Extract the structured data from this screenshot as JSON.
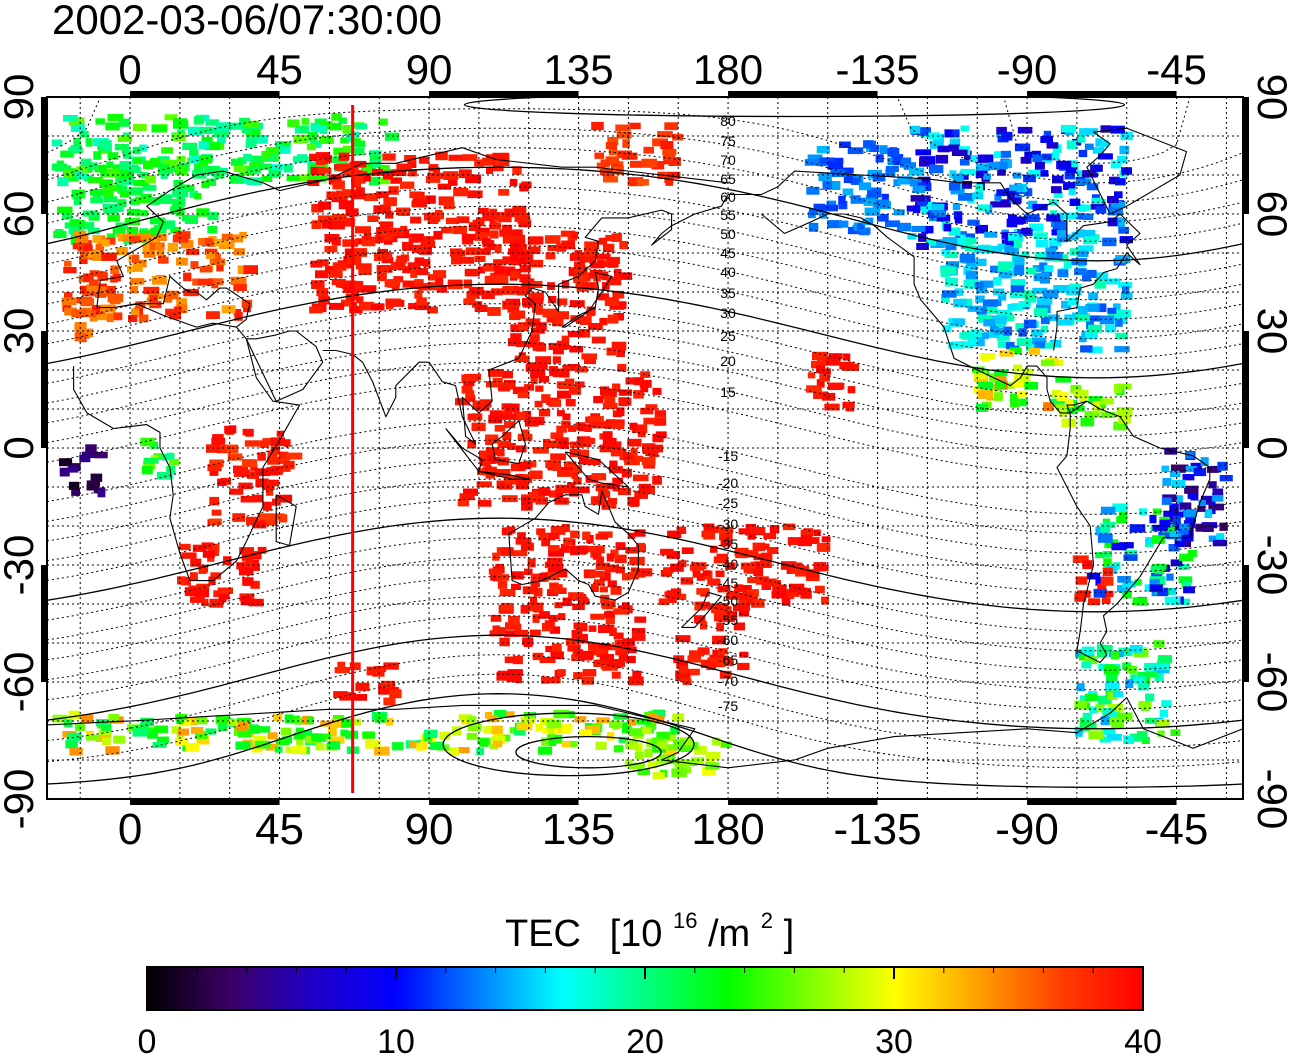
{
  "title": "2002-03-06/07:30:00",
  "map": {
    "lon_min": -25,
    "lon_max": 335,
    "lat_min": -90,
    "lat_max": 90,
    "top_lon_ticks": [
      "0",
      "45",
      "90",
      "135",
      "180",
      "-135",
      "-90",
      "-45"
    ],
    "bottom_lon_ticks": [
      "0",
      "45",
      "90",
      "135",
      "180",
      "-135",
      "-90",
      "-45"
    ],
    "left_lat_ticks": [
      "90",
      "60",
      "30",
      "0",
      "-30",
      "-60",
      "-90"
    ],
    "right_lat_ticks": [
      "90",
      "60",
      "30",
      "0",
      "-30",
      "-60",
      "-90"
    ],
    "meridian_line_lon": 67,
    "meridian_line_color": "#ff0000",
    "contour_labels_north": [
      "80",
      "75",
      "70",
      "65",
      "60",
      "55",
      "50",
      "45",
      "40",
      "35",
      "30",
      "25",
      "20",
      "15"
    ],
    "contour_labels_south": [
      "-15",
      "-20",
      "-25",
      "-30",
      "-35",
      "-40",
      "-45",
      "-50",
      "-55",
      "-60",
      "-65",
      "-70",
      "-75"
    ],
    "contour_label_lon": 180
  },
  "colorbar": {
    "title": "TEC",
    "unit_prefix": "[10",
    "unit_exp": "16",
    "unit_mid": "/m",
    "unit_exp2": "2",
    "unit_suffix": "]",
    "min": 0,
    "max": 40,
    "tick_labels": [
      "0",
      "10",
      "20",
      "30",
      "40"
    ],
    "colors": [
      "#000000",
      "#3c0064",
      "#2000c8",
      "#0000ff",
      "#0080ff",
      "#00ffff",
      "#00ff80",
      "#00ff00",
      "#80ff00",
      "#ffff00",
      "#ffa000",
      "#ff4000",
      "#ff0000"
    ]
  },
  "tec_regions": [
    {
      "lon": [
        -22,
        25
      ],
      "lat": [
        53,
        72
      ],
      "tec": [
        20,
        24
      ]
    },
    {
      "lon": [
        -20,
        37
      ],
      "lat": [
        33,
        55
      ],
      "tec": [
        33,
        39
      ]
    },
    {
      "lon": [
        -22,
        -12
      ],
      "lat": [
        28,
        35
      ],
      "tec": [
        34,
        37
      ]
    },
    {
      "lon": [
        140,
        165
      ],
      "lat": [
        68,
        83
      ],
      "tec": [
        36,
        39
      ]
    },
    {
      "lon": [
        -22,
        80
      ],
      "lat": [
        68,
        85
      ],
      "tec": [
        18,
        26
      ]
    },
    {
      "lon": [
        55,
        120
      ],
      "lat": [
        35,
        75
      ],
      "tec": [
        38,
        40
      ]
    },
    {
      "lon": [
        115,
        150
      ],
      "lat": [
        20,
        55
      ],
      "tec": [
        38,
        40
      ]
    },
    {
      "lon": [
        100,
        160
      ],
      "lat": [
        -15,
        20
      ],
      "tec": [
        38,
        40
      ]
    },
    {
      "lon": [
        110,
        155
      ],
      "lat": [
        -60,
        -20
      ],
      "tec": [
        38,
        40
      ]
    },
    {
      "lon": [
        160,
        210
      ],
      "lat": [
        -40,
        -20
      ],
      "tec": [
        38,
        40
      ]
    },
    {
      "lon": [
        165,
        185
      ],
      "lat": [
        -60,
        -40
      ],
      "tec": [
        38,
        40
      ]
    },
    {
      "lon": [
        15,
        40
      ],
      "lat": [
        -40,
        -25
      ],
      "tec": [
        38,
        40
      ]
    },
    {
      "lon": [
        25,
        50
      ],
      "lat": [
        -20,
        5
      ],
      "tec": [
        37,
        40
      ]
    },
    {
      "lon": [
        205,
        218
      ],
      "lat": [
        10,
        25
      ],
      "tec": [
        38,
        40
      ]
    },
    {
      "lon": [
        62,
        80
      ],
      "lat": [
        -65,
        -55
      ],
      "tec": [
        38,
        40
      ]
    },
    {
      "lon": [
        205,
        235
      ],
      "lat": [
        55,
        78
      ],
      "tec": [
        11,
        15
      ]
    },
    {
      "lon": [
        235,
        300
      ],
      "lat": [
        50,
        82
      ],
      "tec": [
        6,
        18
      ]
    },
    {
      "lon": [
        245,
        300
      ],
      "lat": [
        25,
        55
      ],
      "tec": [
        12,
        19
      ]
    },
    {
      "lon": [
        255,
        280
      ],
      "lat": [
        10,
        25
      ],
      "tec": [
        21,
        35
      ]
    },
    {
      "lon": [
        280,
        300
      ],
      "lat": [
        5,
        18
      ],
      "tec": [
        22,
        30
      ]
    },
    {
      "lon": [
        310,
        330
      ],
      "lat": [
        -25,
        0
      ],
      "tec": [
        3,
        16
      ]
    },
    {
      "lon": [
        290,
        320
      ],
      "lat": [
        -40,
        -15
      ],
      "tec": [
        8,
        24
      ]
    },
    {
      "lon": [
        285,
        295
      ],
      "lat": [
        -40,
        -28
      ],
      "tec": [
        38,
        40
      ]
    },
    {
      "lon": [
        285,
        315
      ],
      "lat": [
        -75,
        -50
      ],
      "tec": [
        14,
        28
      ]
    },
    {
      "lon": [
        -20,
        -8
      ],
      "lat": [
        -12,
        0
      ],
      "tec": [
        1,
        5
      ]
    },
    {
      "lon": [
        5,
        15
      ],
      "lat": [
        -8,
        4
      ],
      "tec": [
        18,
        28
      ]
    },
    {
      "lon": [
        -22,
        165
      ],
      "lat": [
        -78,
        -68
      ],
      "tec": [
        20,
        34
      ]
    },
    {
      "lon": [
        150,
        180
      ],
      "lat": [
        -85,
        -75
      ],
      "tec": [
        24,
        30
      ]
    }
  ]
}
